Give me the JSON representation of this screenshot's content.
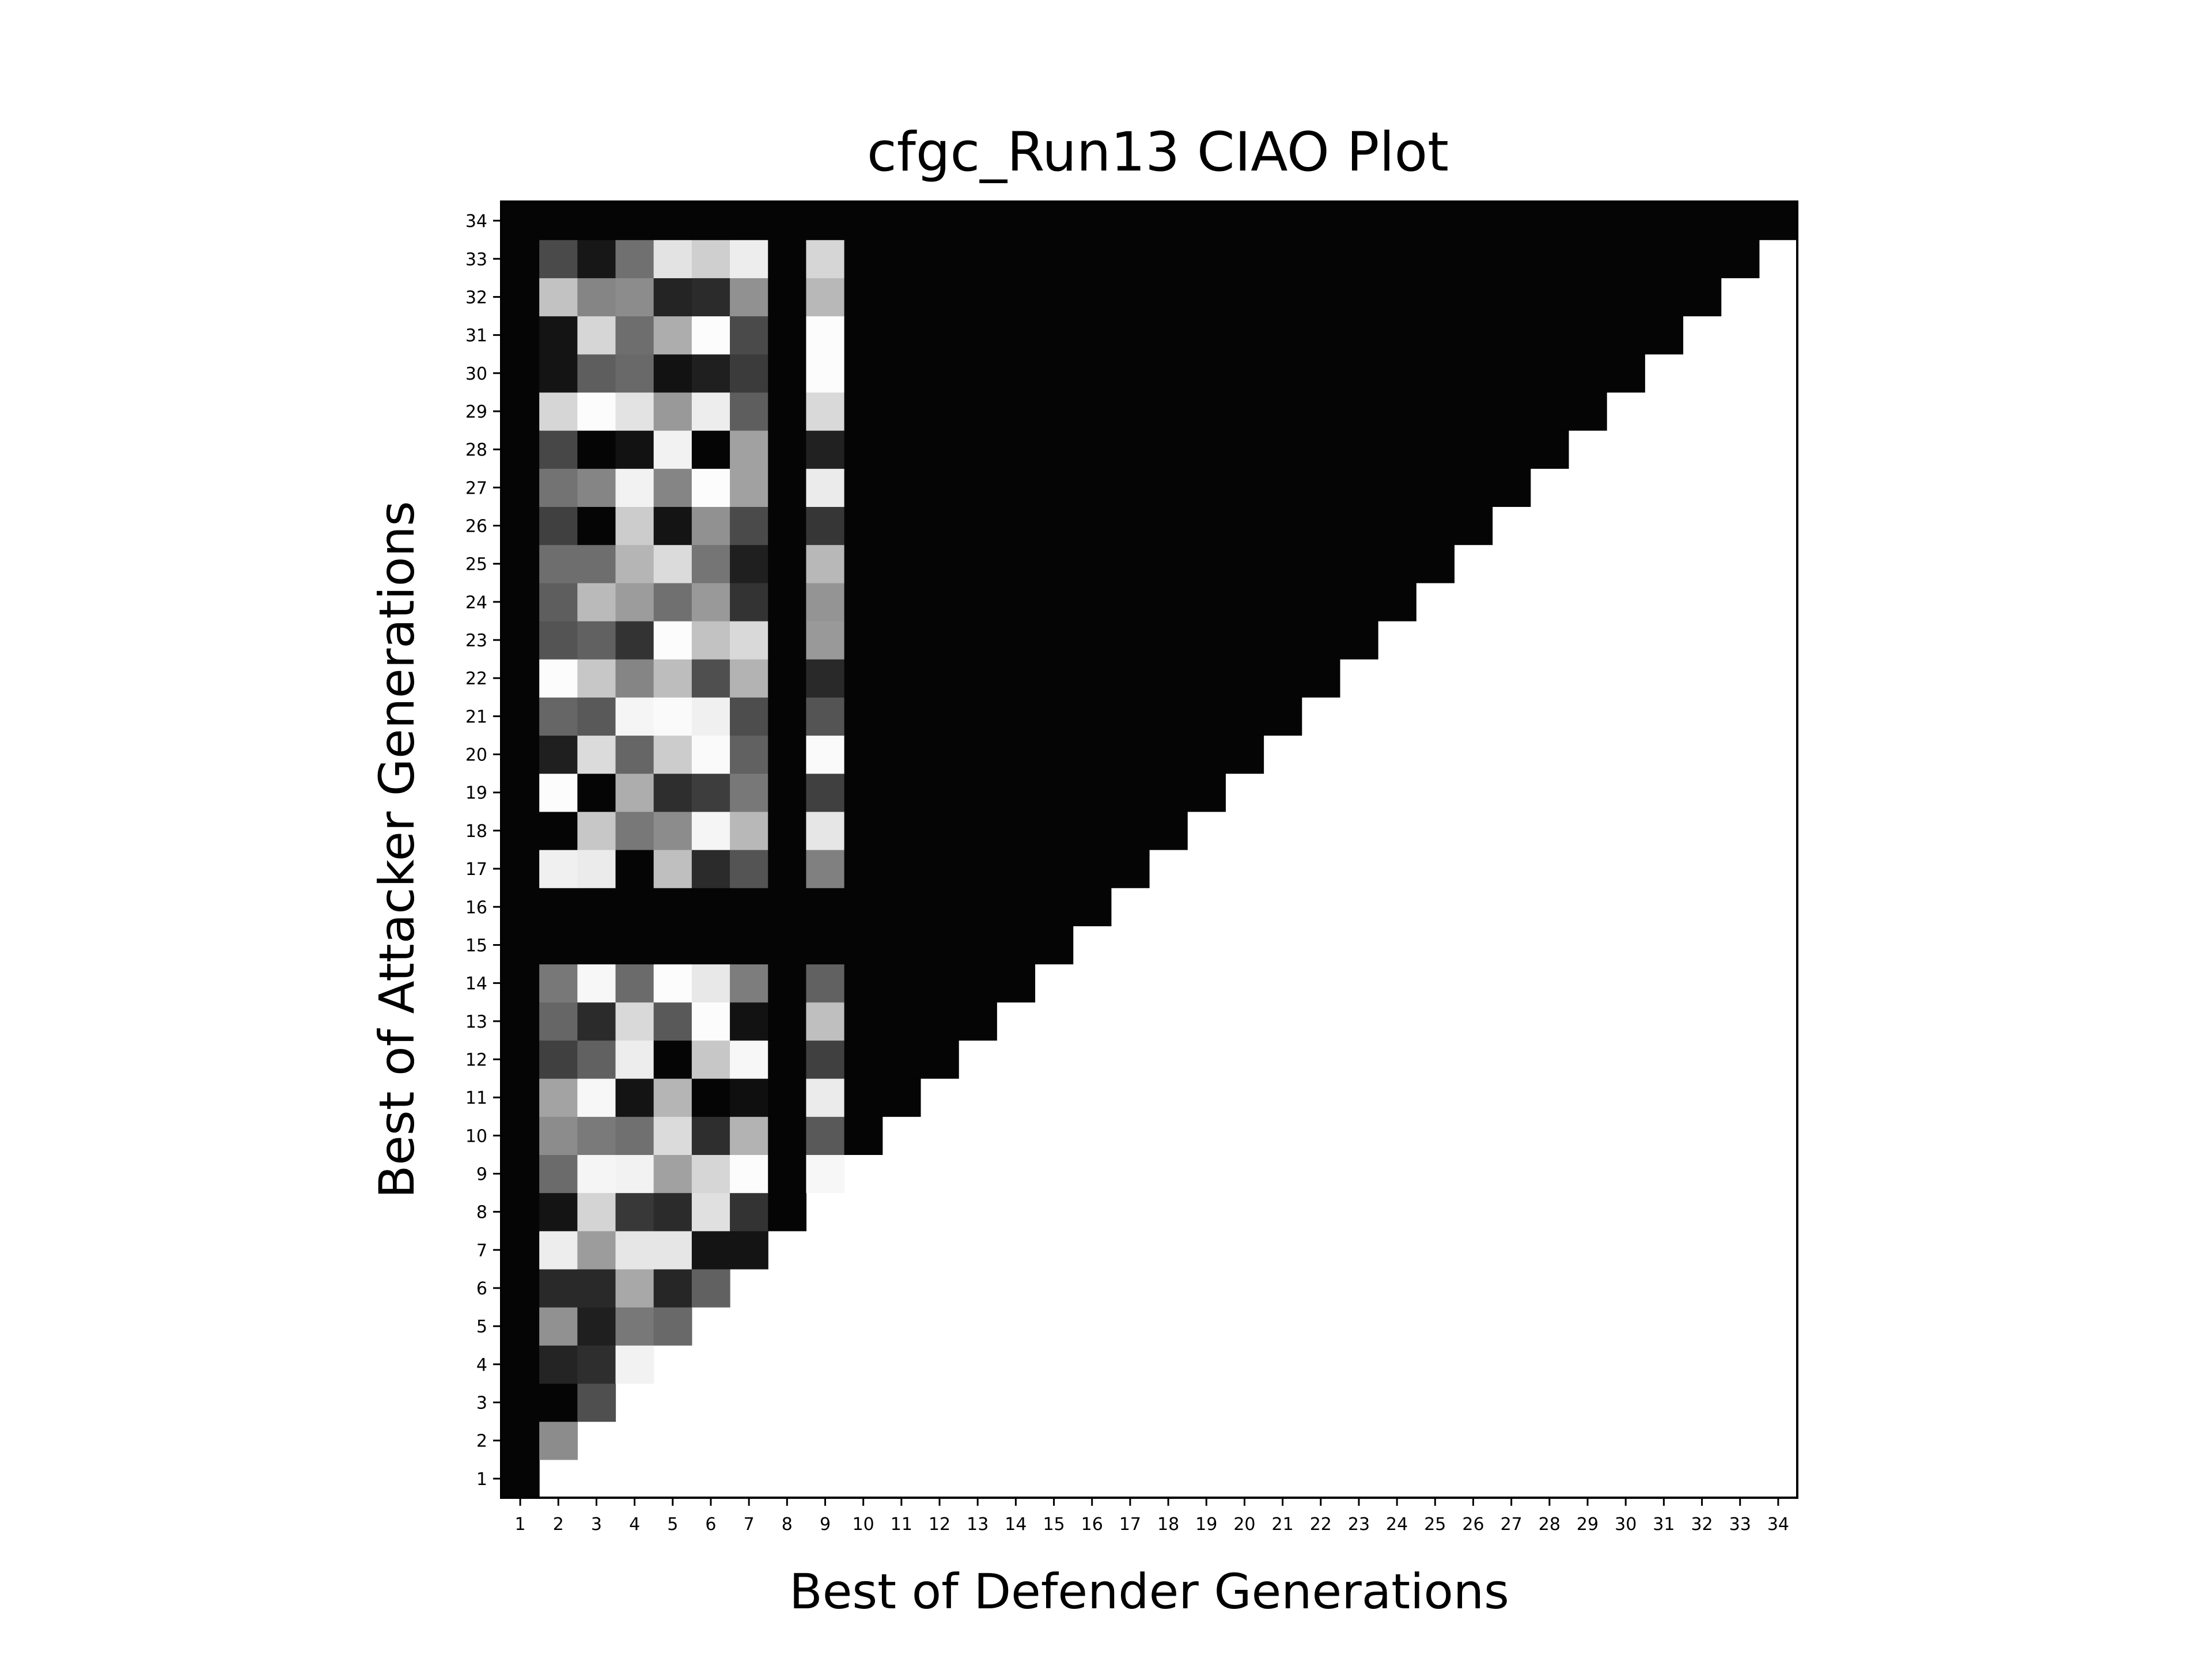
{
  "chart_data": {
    "type": "heatmap",
    "title": "cfgc_Run13 CIAO Plot",
    "xlabel": "Best of Defender Generations",
    "ylabel": "Best of Attacker Generations",
    "x_ticks": [
      "1",
      "2",
      "3",
      "4",
      "5",
      "6",
      "7",
      "8",
      "9",
      "10",
      "11",
      "12",
      "13",
      "14",
      "15",
      "16",
      "17",
      "18",
      "19",
      "20",
      "21",
      "22",
      "23",
      "24",
      "25",
      "26",
      "27",
      "28",
      "29",
      "30",
      "31",
      "32",
      "33",
      "34"
    ],
    "y_ticks": [
      "1",
      "2",
      "3",
      "4",
      "5",
      "6",
      "7",
      "8",
      "9",
      "10",
      "11",
      "12",
      "13",
      "14",
      "15",
      "16",
      "17",
      "18",
      "19",
      "20",
      "21",
      "22",
      "23",
      "24",
      "25",
      "26",
      "27",
      "28",
      "29",
      "30",
      "31",
      "32",
      "33",
      "34"
    ],
    "xlim": [
      1,
      34
    ],
    "ylim": [
      1,
      34
    ],
    "colormap": "grayscale (0 = black, 1 = white)",
    "grid": false,
    "colors": {
      "low": "#000000",
      "high": "#ffffff"
    },
    "notes": "values[i] is attacker generation i+1; entry j is defender generation j+1. Cells with defender > attacker are white (not evaluated).",
    "values": [
      [
        0.02
      ],
      [
        0.02,
        0.55
      ],
      [
        0.02,
        0.02,
        0.31
      ],
      [
        0.02,
        0.14,
        0.18,
        0.95
      ],
      [
        0.02,
        0.57,
        0.12,
        0.47,
        0.41
      ],
      [
        0.02,
        0.16,
        0.16,
        0.66,
        0.15,
        0.38
      ],
      [
        0.02,
        0.93,
        0.61,
        0.9,
        0.9,
        0.08,
        0.08
      ],
      [
        0.02,
        0.08,
        0.83,
        0.22,
        0.17,
        0.88,
        0.2,
        0.02
      ],
      [
        0.02,
        0.42,
        0.96,
        0.95,
        0.63,
        0.84,
        0.99,
        0.02,
        0.97
      ],
      [
        0.02,
        0.55,
        0.48,
        0.44,
        0.86,
        0.18,
        0.7,
        0.02,
        0.35,
        0.02
      ],
      [
        0.02,
        0.64,
        0.97,
        0.08,
        0.71,
        0.02,
        0.06,
        0.02,
        0.92,
        0.02,
        0.02
      ],
      [
        0.02,
        0.25,
        0.38,
        0.93,
        0.02,
        0.78,
        0.97,
        0.02,
        0.25,
        0.02,
        0.02,
        0.02
      ],
      [
        0.02,
        0.4,
        0.17,
        0.85,
        0.35,
        0.99,
        0.07,
        0.02,
        0.75,
        0.02,
        0.02,
        0.02,
        0.02
      ],
      [
        0.02,
        0.47,
        0.97,
        0.42,
        0.99,
        0.91,
        0.49,
        0.02,
        0.38,
        0.02,
        0.02,
        0.02,
        0.02,
        0.02
      ],
      [
        0.02,
        0.02,
        0.02,
        0.02,
        0.02,
        0.02,
        0.02,
        0.02,
        0.02,
        0.02,
        0.02,
        0.02,
        0.02,
        0.02,
        0.02
      ],
      [
        0.02,
        0.02,
        0.02,
        0.02,
        0.02,
        0.02,
        0.02,
        0.02,
        0.02,
        0.02,
        0.02,
        0.02,
        0.02,
        0.02,
        0.02,
        0.02
      ],
      [
        0.02,
        0.94,
        0.92,
        0.02,
        0.75,
        0.17,
        0.33,
        0.02,
        0.5,
        0.02,
        0.02,
        0.02,
        0.02,
        0.02,
        0.02,
        0.02,
        0.02
      ],
      [
        0.02,
        0.02,
        0.78,
        0.47,
        0.55,
        0.96,
        0.72,
        0.02,
        0.9,
        0.02,
        0.02,
        0.02,
        0.02,
        0.02,
        0.02,
        0.02,
        0.02,
        0.02
      ],
      [
        0.02,
        0.99,
        0.02,
        0.68,
        0.18,
        0.24,
        0.47,
        0.02,
        0.25,
        0.02,
        0.02,
        0.02,
        0.02,
        0.02,
        0.02,
        0.02,
        0.02,
        0.02,
        0.02
      ],
      [
        0.02,
        0.12,
        0.86,
        0.4,
        0.8,
        0.98,
        0.38,
        0.02,
        0.98,
        0.02,
        0.02,
        0.02,
        0.02,
        0.02,
        0.02,
        0.02,
        0.02,
        0.02,
        0.02,
        0.02
      ],
      [
        0.02,
        0.4,
        0.35,
        0.96,
        0.98,
        0.94,
        0.3,
        0.02,
        0.33,
        0.02,
        0.02,
        0.02,
        0.02,
        0.02,
        0.02,
        0.02,
        0.02,
        0.02,
        0.02,
        0.02,
        0.02
      ],
      [
        0.02,
        0.99,
        0.78,
        0.52,
        0.74,
        0.31,
        0.7,
        0.02,
        0.16,
        0.02,
        0.02,
        0.02,
        0.02,
        0.02,
        0.02,
        0.02,
        0.02,
        0.02,
        0.02,
        0.02,
        0.02,
        0.02
      ],
      [
        0.02,
        0.33,
        0.38,
        0.2,
        0.99,
        0.76,
        0.85,
        0.02,
        0.6,
        0.02,
        0.02,
        0.02,
        0.02,
        0.02,
        0.02,
        0.02,
        0.02,
        0.02,
        0.02,
        0.02,
        0.02,
        0.02,
        0.02
      ],
      [
        0.02,
        0.37,
        0.73,
        0.61,
        0.44,
        0.6,
        0.2,
        0.02,
        0.58,
        0.02,
        0.02,
        0.02,
        0.02,
        0.02,
        0.02,
        0.02,
        0.02,
        0.02,
        0.02,
        0.02,
        0.02,
        0.02,
        0.02,
        0.02
      ],
      [
        0.02,
        0.43,
        0.43,
        0.71,
        0.86,
        0.46,
        0.12,
        0.02,
        0.72,
        0.02,
        0.02,
        0.02,
        0.02,
        0.02,
        0.02,
        0.02,
        0.02,
        0.02,
        0.02,
        0.02,
        0.02,
        0.02,
        0.02,
        0.02,
        0.02
      ],
      [
        0.02,
        0.25,
        0.02,
        0.8,
        0.08,
        0.57,
        0.29,
        0.02,
        0.21,
        0.02,
        0.02,
        0.02,
        0.02,
        0.02,
        0.02,
        0.02,
        0.02,
        0.02,
        0.02,
        0.02,
        0.02,
        0.02,
        0.02,
        0.02,
        0.02,
        0.02
      ],
      [
        0.02,
        0.45,
        0.52,
        0.95,
        0.52,
        0.99,
        0.63,
        0.02,
        0.92,
        0.02,
        0.02,
        0.02,
        0.02,
        0.02,
        0.02,
        0.02,
        0.02,
        0.02,
        0.02,
        0.02,
        0.02,
        0.02,
        0.02,
        0.02,
        0.02,
        0.02,
        0.02
      ],
      [
        0.02,
        0.28,
        0.02,
        0.07,
        0.95,
        0.02,
        0.63,
        0.02,
        0.13,
        0.02,
        0.02,
        0.02,
        0.02,
        0.02,
        0.02,
        0.02,
        0.02,
        0.02,
        0.02,
        0.02,
        0.02,
        0.02,
        0.02,
        0.02,
        0.02,
        0.02,
        0.02,
        0.02
      ],
      [
        0.02,
        0.84,
        0.99,
        0.89,
        0.6,
        0.93,
        0.37,
        0.02,
        0.85,
        0.02,
        0.02,
        0.02,
        0.02,
        0.02,
        0.02,
        0.02,
        0.02,
        0.02,
        0.02,
        0.02,
        0.02,
        0.02,
        0.02,
        0.02,
        0.02,
        0.02,
        0.02,
        0.02,
        0.02
      ],
      [
        0.02,
        0.08,
        0.37,
        0.41,
        0.07,
        0.12,
        0.23,
        0.02,
        0.99,
        0.02,
        0.02,
        0.02,
        0.02,
        0.02,
        0.02,
        0.02,
        0.02,
        0.02,
        0.02,
        0.02,
        0.02,
        0.02,
        0.02,
        0.02,
        0.02,
        0.02,
        0.02,
        0.02,
        0.02,
        0.02
      ],
      [
        0.02,
        0.08,
        0.84,
        0.43,
        0.68,
        0.99,
        0.29,
        0.02,
        0.99,
        0.02,
        0.02,
        0.02,
        0.02,
        0.02,
        0.02,
        0.02,
        0.02,
        0.02,
        0.02,
        0.02,
        0.02,
        0.02,
        0.02,
        0.02,
        0.02,
        0.02,
        0.02,
        0.02,
        0.02,
        0.02,
        0.02
      ],
      [
        0.02,
        0.76,
        0.52,
        0.55,
        0.14,
        0.17,
        0.57,
        0.02,
        0.72,
        0.02,
        0.02,
        0.02,
        0.02,
        0.02,
        0.02,
        0.02,
        0.02,
        0.02,
        0.02,
        0.02,
        0.02,
        0.02,
        0.02,
        0.02,
        0.02,
        0.02,
        0.02,
        0.02,
        0.02,
        0.02,
        0.02,
        0.02
      ],
      [
        0.02,
        0.29,
        0.09,
        0.44,
        0.89,
        0.81,
        0.93,
        0.02,
        0.84,
        0.02,
        0.02,
        0.02,
        0.02,
        0.02,
        0.02,
        0.02,
        0.02,
        0.02,
        0.02,
        0.02,
        0.02,
        0.02,
        0.02,
        0.02,
        0.02,
        0.02,
        0.02,
        0.02,
        0.02,
        0.02,
        0.02,
        0.02,
        0.02
      ],
      [
        0.02,
        0.02,
        0.02,
        0.02,
        0.02,
        0.02,
        0.02,
        0.02,
        0.02,
        0.02,
        0.02,
        0.02,
        0.02,
        0.02,
        0.02,
        0.02,
        0.02,
        0.02,
        0.02,
        0.02,
        0.02,
        0.02,
        0.02,
        0.02,
        0.02,
        0.02,
        0.02,
        0.02,
        0.02,
        0.02,
        0.02,
        0.02,
        0.02,
        0.02
      ]
    ]
  }
}
